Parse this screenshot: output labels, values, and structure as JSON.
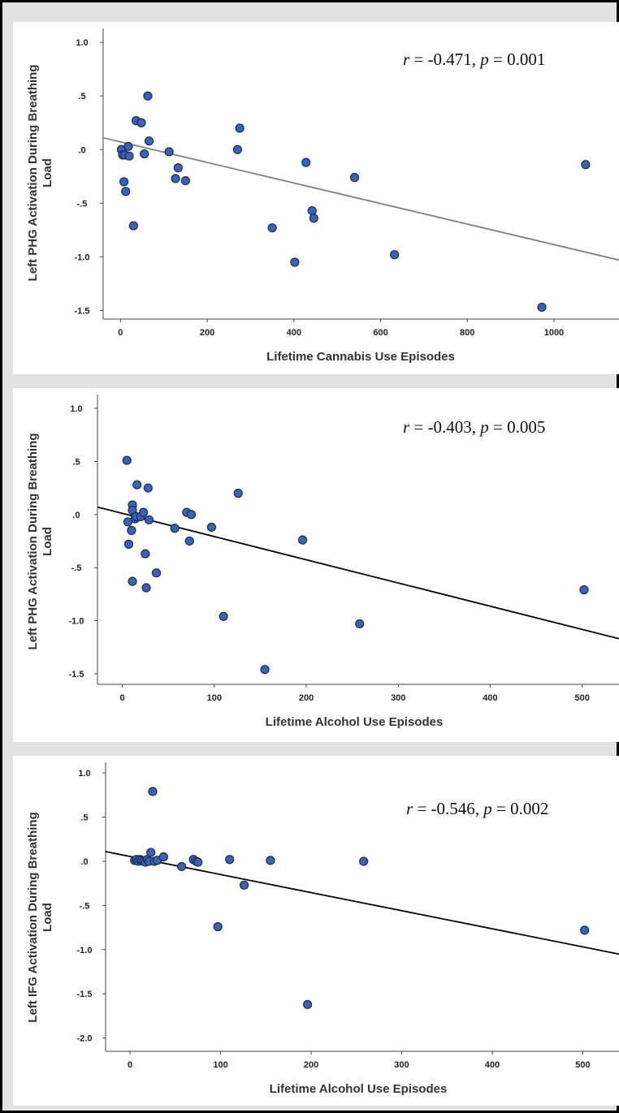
{
  "colors": {
    "frame_bg": "#e2e2e2",
    "plot_bg": "#ffffff",
    "point_fill": "#3b63b5",
    "point_stroke": "#1b2b5a"
  },
  "chart_data": [
    {
      "type": "scatter",
      "title": "",
      "xlabel": "Lifetime Cannabis Use Episodes",
      "ylabel_lines": [
        "Left PHG Activation During Breathing",
        "Load"
      ],
      "xlim": [
        -40,
        1150
      ],
      "ylim": [
        -1.58,
        1.13
      ],
      "xticks": [
        0,
        200,
        400,
        600,
        800,
        1000
      ],
      "xtick_labels": [
        "0",
        "200",
        "400",
        "600",
        "800",
        "1000"
      ],
      "yticks": [
        1.0,
        0.5,
        0.0,
        -0.5,
        -1.0,
        -1.5
      ],
      "ytick_labels": [
        "1.0",
        ".5",
        ".0",
        "-.5",
        "-1.0",
        "-1.5"
      ],
      "grid": false,
      "fit_line": {
        "color": "#808080",
        "points": [
          [
            -40,
            0.11
          ],
          [
            1150,
            -1.03
          ]
        ]
      },
      "annotation": {
        "r_symbol": "r",
        "r_text": " = -0.471, ",
        "p_symbol": "p",
        "p_text": " = 0.001",
        "position": "top-right"
      },
      "points": [
        {
          "x": 2,
          "y": 0.0
        },
        {
          "x": 5,
          "y": -0.05
        },
        {
          "x": 8,
          "y": -0.3
        },
        {
          "x": 10,
          "y": -0.05
        },
        {
          "x": 12,
          "y": -0.39
        },
        {
          "x": 18,
          "y": 0.03
        },
        {
          "x": 20,
          "y": -0.06
        },
        {
          "x": 30,
          "y": -0.71
        },
        {
          "x": 36,
          "y": 0.27
        },
        {
          "x": 48,
          "y": 0.25
        },
        {
          "x": 55,
          "y": -0.04
        },
        {
          "x": 63,
          "y": 0.5
        },
        {
          "x": 66,
          "y": 0.08
        },
        {
          "x": 112,
          "y": -0.02
        },
        {
          "x": 127,
          "y": -0.27
        },
        {
          "x": 133,
          "y": -0.17
        },
        {
          "x": 150,
          "y": -0.29
        },
        {
          "x": 270,
          "y": 0.0
        },
        {
          "x": 275,
          "y": 0.2
        },
        {
          "x": 350,
          "y": -0.73
        },
        {
          "x": 402,
          "y": -1.05
        },
        {
          "x": 428,
          "y": -0.12
        },
        {
          "x": 442,
          "y": -0.57
        },
        {
          "x": 446,
          "y": -0.64
        },
        {
          "x": 540,
          "y": -0.26
        },
        {
          "x": 632,
          "y": -0.98
        },
        {
          "x": 972,
          "y": -1.47
        },
        {
          "x": 1073,
          "y": -0.14
        }
      ]
    },
    {
      "type": "scatter",
      "title": "",
      "xlabel": "Lifetime Alcohol Use Episodes",
      "ylabel_lines": [
        "Left PHG Activation During Breathing",
        "Load"
      ],
      "xlim": [
        -27,
        540
      ],
      "ylim": [
        -1.6,
        1.13
      ],
      "xticks": [
        0,
        100,
        200,
        300,
        400,
        500
      ],
      "xtick_labels": [
        "0",
        "100",
        "200",
        "300",
        "400",
        "500"
      ],
      "yticks": [
        1.0,
        0.5,
        0.0,
        -0.5,
        -1.0,
        -1.5
      ],
      "ytick_labels": [
        "1.0",
        ".5",
        ".0",
        "-.5",
        "-1.0",
        "-1.5"
      ],
      "grid": false,
      "fit_line": {
        "color": "#000000",
        "points": [
          [
            -27,
            0.07
          ],
          [
            540,
            -1.17
          ]
        ]
      },
      "annotation": {
        "r_symbol": "r",
        "r_text": " = -0.403, ",
        "p_symbol": "p",
        "p_text": " = 0.005",
        "position": "top-right"
      },
      "points": [
        {
          "x": 5,
          "y": 0.51
        },
        {
          "x": 6,
          "y": -0.07
        },
        {
          "x": 7,
          "y": -0.28
        },
        {
          "x": 10,
          "y": -0.15
        },
        {
          "x": 11,
          "y": 0.09
        },
        {
          "x": 11,
          "y": 0.04
        },
        {
          "x": 11,
          "y": -0.63
        },
        {
          "x": 14,
          "y": -0.04
        },
        {
          "x": 15,
          "y": -0.02
        },
        {
          "x": 16,
          "y": 0.28
        },
        {
          "x": 20,
          "y": -0.02
        },
        {
          "x": 23,
          "y": 0.02
        },
        {
          "x": 25,
          "y": -0.37
        },
        {
          "x": 26,
          "y": -0.69
        },
        {
          "x": 28,
          "y": 0.25
        },
        {
          "x": 29,
          "y": -0.05
        },
        {
          "x": 37,
          "y": -0.55
        },
        {
          "x": 57,
          "y": -0.13
        },
        {
          "x": 70,
          "y": 0.02
        },
        {
          "x": 73,
          "y": -0.25
        },
        {
          "x": 75,
          "y": 0.0
        },
        {
          "x": 97,
          "y": -0.12
        },
        {
          "x": 110,
          "y": -0.96
        },
        {
          "x": 126,
          "y": 0.2
        },
        {
          "x": 155,
          "y": -1.46
        },
        {
          "x": 196,
          "y": -0.24
        },
        {
          "x": 258,
          "y": -1.03
        },
        {
          "x": 502,
          "y": -0.71
        }
      ]
    },
    {
      "type": "scatter",
      "title": "",
      "xlabel": "Lifetime Alcohol Use Episodes",
      "ylabel_lines": [
        "Left IFG Activation During Breathing",
        "Load"
      ],
      "xlim": [
        -27,
        540
      ],
      "ylim": [
        -2.15,
        1.12
      ],
      "xticks": [
        0,
        100,
        200,
        300,
        400,
        500
      ],
      "xtick_labels": [
        "0",
        "100",
        "200",
        "300",
        "400",
        "500"
      ],
      "yticks": [
        1.0,
        0.5,
        0.0,
        -0.5,
        -1.0,
        -1.5,
        -2.0
      ],
      "ytick_labels": [
        "1.0",
        ".5",
        ".0",
        "-.5",
        "-1.0",
        "-1.5",
        "-2.0"
      ],
      "grid": false,
      "fit_line": {
        "color": "#000000",
        "points": [
          [
            -27,
            0.11
          ],
          [
            540,
            -1.05
          ]
        ]
      },
      "annotation": {
        "r_symbol": "r",
        "r_text": " = -0.546, ",
        "p_symbol": "p",
        "p_text": " = 0.002",
        "position": "top-right"
      },
      "points": [
        {
          "x": 5,
          "y": 0.01
        },
        {
          "x": 7,
          "y": 0.02
        },
        {
          "x": 9,
          "y": 0.0
        },
        {
          "x": 11,
          "y": 0.02
        },
        {
          "x": 13,
          "y": 0.01
        },
        {
          "x": 15,
          "y": 0.0
        },
        {
          "x": 17,
          "y": -0.01
        },
        {
          "x": 19,
          "y": 0.02
        },
        {
          "x": 21,
          "y": 0.0
        },
        {
          "x": 23,
          "y": 0.1
        },
        {
          "x": 25,
          "y": 0.79
        },
        {
          "x": 27,
          "y": 0.0
        },
        {
          "x": 30,
          "y": 0.01
        },
        {
          "x": 37,
          "y": 0.05
        },
        {
          "x": 57,
          "y": -0.06
        },
        {
          "x": 70,
          "y": 0.02
        },
        {
          "x": 73,
          "y": 0.0
        },
        {
          "x": 75,
          "y": -0.01
        },
        {
          "x": 97,
          "y": -0.74
        },
        {
          "x": 110,
          "y": 0.02
        },
        {
          "x": 126,
          "y": -0.27
        },
        {
          "x": 155,
          "y": 0.01
        },
        {
          "x": 196,
          "y": -1.62
        },
        {
          "x": 258,
          "y": 0.0
        },
        {
          "x": 502,
          "y": -0.78
        }
      ]
    }
  ]
}
